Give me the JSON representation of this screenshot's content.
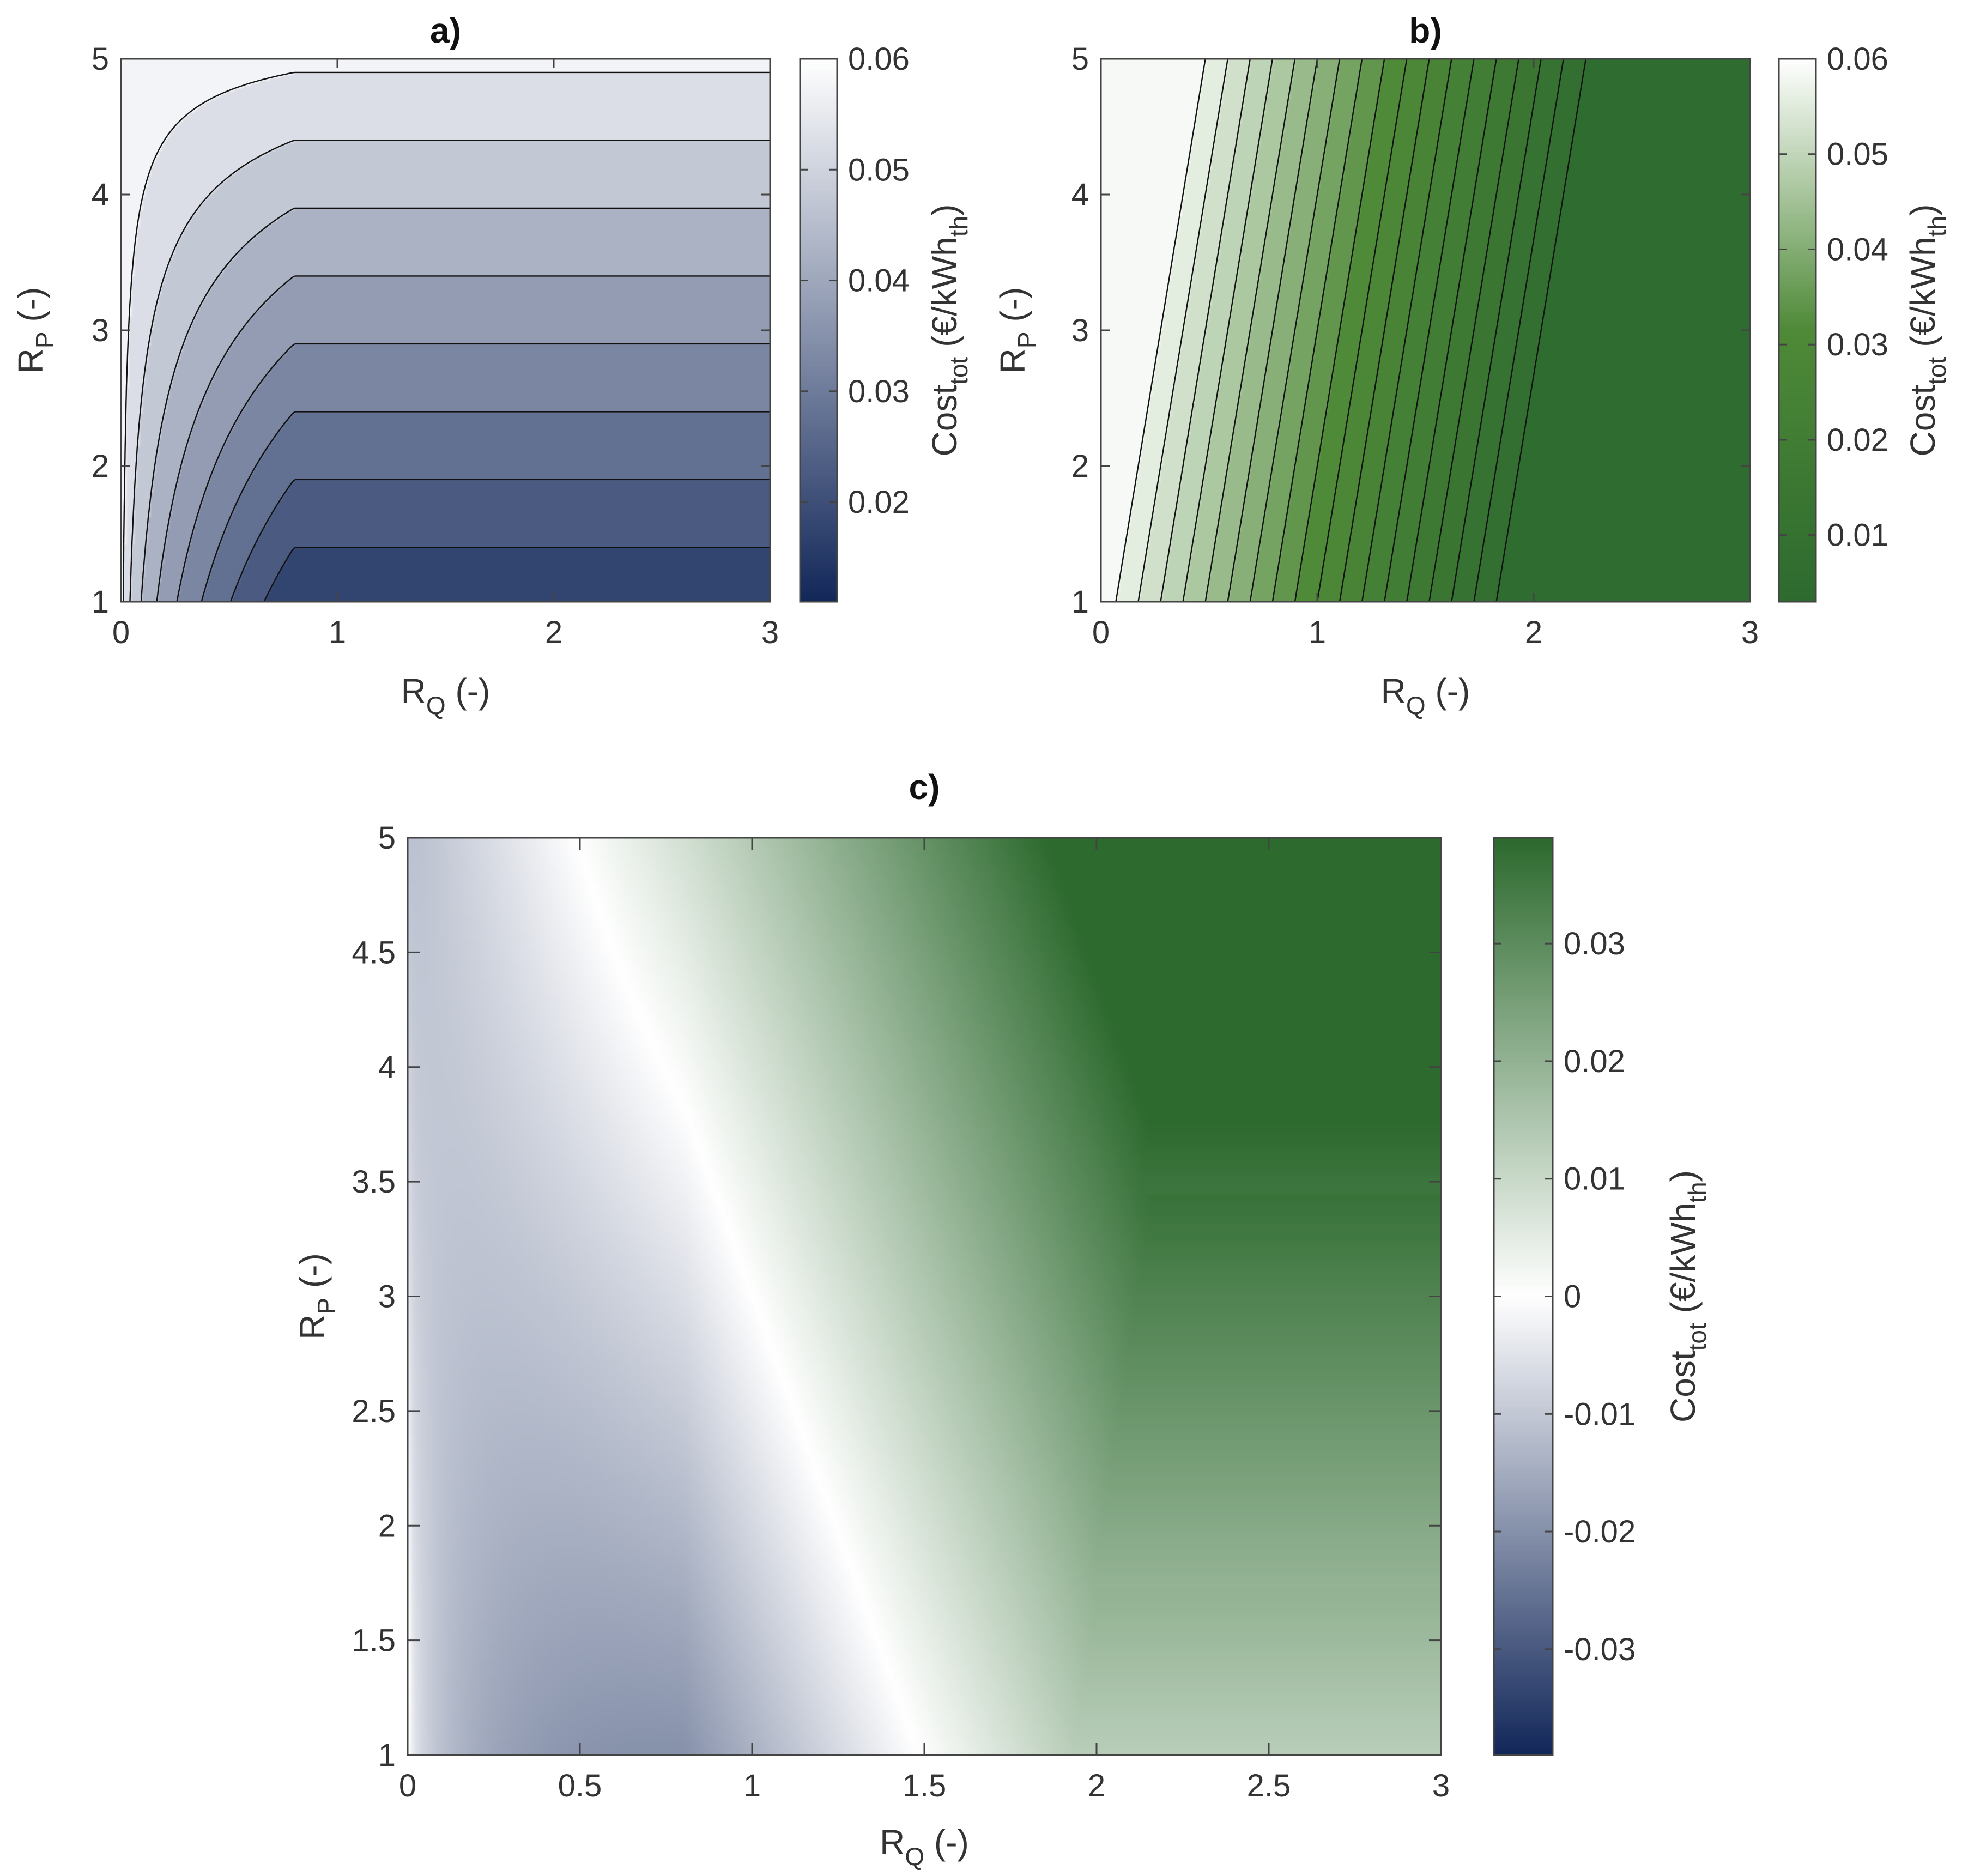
{
  "chart_data": [
    {
      "type": "heatmap",
      "panel": "a)",
      "title": "a)",
      "style": "filled contour",
      "xlabel": "R",
      "xlabel_sub": "Q",
      "xlabel_suffix": " (-)",
      "ylabel": "R",
      "ylabel_sub": "P",
      "ylabel_suffix": " (-)",
      "xlim": [
        0,
        3
      ],
      "ylim": [
        1,
        5
      ],
      "x_ticks": [
        0,
        1,
        2,
        3
      ],
      "y_ticks": [
        1,
        2,
        3,
        4,
        5
      ],
      "colorbar": {
        "label": "Cost",
        "label_sub": "tot",
        "units": " (€/kWh",
        "units_sub": "th",
        "units_close": ")",
        "range": [
          0.011,
          0.06
        ],
        "ticks": [
          0.02,
          0.03,
          0.04,
          0.05,
          0.06
        ],
        "colors": [
          "#13285a",
          "#ffffff"
        ]
      },
      "contour_levels": [
        0.015,
        0.02,
        0.025,
        0.03,
        0.035,
        0.04,
        0.045,
        0.05,
        0.055
      ],
      "model": {
        "kind": "plateau",
        "base": 0.006,
        "slope": 0.01,
        "x_break": 0.8,
        "x_width": 0.18
      }
    },
    {
      "type": "heatmap",
      "panel": "b)",
      "title": "b)",
      "style": "filled contour",
      "xlabel": "R",
      "xlabel_sub": "Q",
      "xlabel_suffix": " (-)",
      "ylabel": "R",
      "ylabel_sub": "P",
      "ylabel_suffix": " (-)",
      "xlim": [
        0,
        3
      ],
      "ylim": [
        1,
        5
      ],
      "x_ticks": [
        0,
        1,
        2,
        3
      ],
      "y_ticks": [
        1,
        2,
        3,
        4,
        5
      ],
      "colorbar": {
        "label": "Cost",
        "label_sub": "tot",
        "units": " (€/kWh",
        "units_sub": "th",
        "units_close": ")",
        "range": [
          0.003,
          0.06
        ],
        "ticks": [
          0.01,
          0.02,
          0.03,
          0.04,
          0.05,
          0.06
        ],
        "colors": [
          "#2d6a2e",
          "#4f8a38",
          "#ffffff"
        ]
      },
      "contour_levels": [
        0.006,
        0.009,
        0.012,
        0.015,
        0.018,
        0.021,
        0.024,
        0.027,
        0.03,
        0.033,
        0.036,
        0.039,
        0.042,
        0.045,
        0.048,
        0.051,
        0.054,
        0.057
      ],
      "model": {
        "kind": "linear",
        "intercept": 0.059,
        "slope_x": -0.029,
        "slope_y": 0.003,
        "floor": 0.0035,
        "floor_y_extra": 0.0012
      }
    },
    {
      "type": "heatmap",
      "panel": "c)",
      "title": "c)",
      "style": "smooth",
      "xlabel": "R",
      "xlabel_sub": "Q",
      "xlabel_suffix": " (-)",
      "ylabel": "R",
      "ylabel_sub": "P",
      "ylabel_suffix": " (-)",
      "xlim": [
        0,
        3
      ],
      "ylim": [
        1,
        5
      ],
      "x_ticks": [
        0,
        0.5,
        1,
        1.5,
        2,
        2.5,
        3
      ],
      "y_ticks": [
        1,
        1.5,
        2,
        2.5,
        3,
        3.5,
        4,
        4.5,
        5
      ],
      "colorbar": {
        "label": "Cost",
        "label_sub": "tot",
        "units": " (€/kWh",
        "units_sub": "th",
        "units_close": ")",
        "range": [
          -0.039,
          0.039
        ],
        "ticks": [
          -0.03,
          -0.02,
          -0.01,
          0,
          0.01,
          0.02,
          0.03
        ],
        "tick_labels": [
          "-0.03",
          "-0.02",
          "-0.01",
          "0",
          "0.01",
          "0.02",
          "0.03"
        ],
        "colors": [
          "#13285a",
          "#ffffff",
          "#2d6a2e"
        ]
      },
      "model": {
        "kind": "difference"
      }
    }
  ]
}
